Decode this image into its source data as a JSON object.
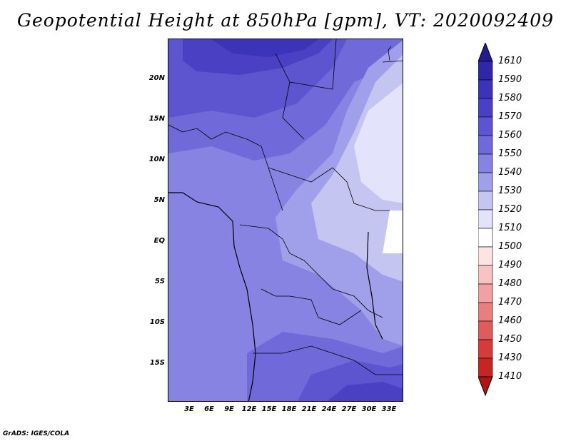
{
  "title": "Geopotential Height at 850hPa [gpm], VT: 2020092409",
  "footer": "GrADS: IGES/COLA",
  "lat_labels": [
    "20N",
    "15N",
    "10N",
    "5N",
    "EQ",
    "5S",
    "10S",
    "15S"
  ],
  "lon_labels": [
    "3E",
    "6E",
    "9E",
    "12E",
    "15E",
    "18E",
    "21E",
    "24E",
    "27E",
    "30E",
    "33E"
  ],
  "colorbar": {
    "labels": [
      "1610",
      "1590",
      "1580",
      "1570",
      "1560",
      "1550",
      "1540",
      "1530",
      "1520",
      "1510",
      "1500",
      "1490",
      "1480",
      "1470",
      "1460",
      "1450",
      "1430",
      "1410"
    ],
    "colors": [
      "#251a8f",
      "#2f27a6",
      "#3b33b8",
      "#4a40c4",
      "#5c55cf",
      "#6f69d9",
      "#8683e3",
      "#a09fea",
      "#c5c5f2",
      "#e3e3fb",
      "#ffffff",
      "#fde4e4",
      "#f8c3c3",
      "#f1a1a1",
      "#e97e7e",
      "#e05c5c",
      "#d43c3c",
      "#c42525",
      "#b01515"
    ]
  }
}
